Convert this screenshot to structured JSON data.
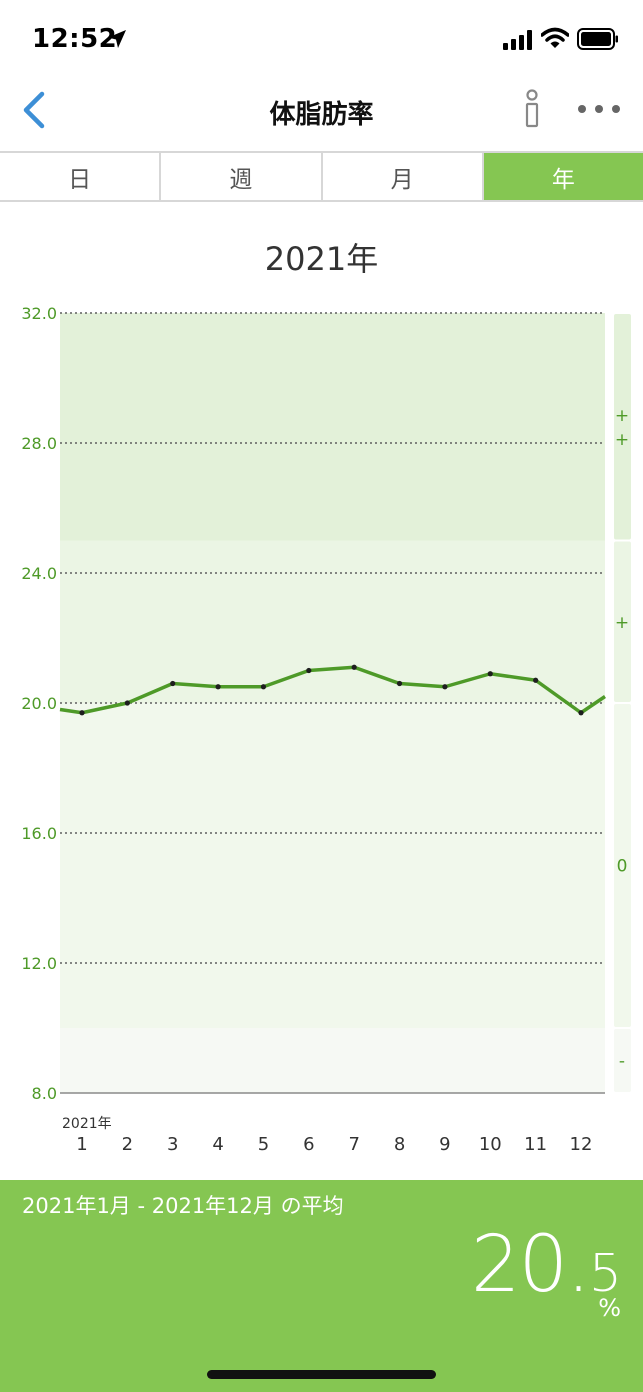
{
  "status_bar": {
    "time": "12:52"
  },
  "nav": {
    "title": "体脂肪率"
  },
  "tabs": [
    {
      "label": "日",
      "active": false
    },
    {
      "label": "週",
      "active": false
    },
    {
      "label": "月",
      "active": false
    },
    {
      "label": "年",
      "active": true
    }
  ],
  "year_title": "2021年",
  "chart_data": {
    "type": "line",
    "title": "2021年",
    "x_prefix": "2021年",
    "categories": [
      "1",
      "2",
      "3",
      "4",
      "5",
      "6",
      "7",
      "8",
      "9",
      "10",
      "11",
      "12"
    ],
    "series": [
      {
        "name": "",
        "values": [
          19.7,
          20.0,
          20.6,
          20.5,
          20.5,
          21.0,
          21.1,
          20.6,
          20.5,
          20.9,
          20.7,
          19.7
        ]
      }
    ],
    "edge_values": {
      "left": 19.8,
      "right": 20.2
    },
    "ylim": [
      8.0,
      32.0
    ],
    "yticks": [
      "32.0",
      "28.0",
      "24.0",
      "20.0",
      "16.0",
      "12.0",
      "8.0"
    ],
    "bands": [
      {
        "from": 25.0,
        "to": 32.0,
        "label": "+\n+",
        "color": "#e3f1d9"
      },
      {
        "from": 20.0,
        "to": 25.0,
        "label": "+",
        "color": "#ebf5e4"
      },
      {
        "from": 10.0,
        "to": 20.0,
        "label": "0",
        "color": "#f1f8ec"
      },
      {
        "from": 8.0,
        "to": 10.0,
        "label": "-",
        "color": "#f6f9f4"
      }
    ],
    "line_color": "#4e9a28",
    "accent_color": "#4e9a28"
  },
  "summary": {
    "range": "2021年1月 - 2021年12月 の平均",
    "value_int": "20.",
    "value_dec": "5",
    "unit": "%"
  },
  "colors": {
    "accent": "#85c652",
    "back": "#3d8fd6"
  }
}
